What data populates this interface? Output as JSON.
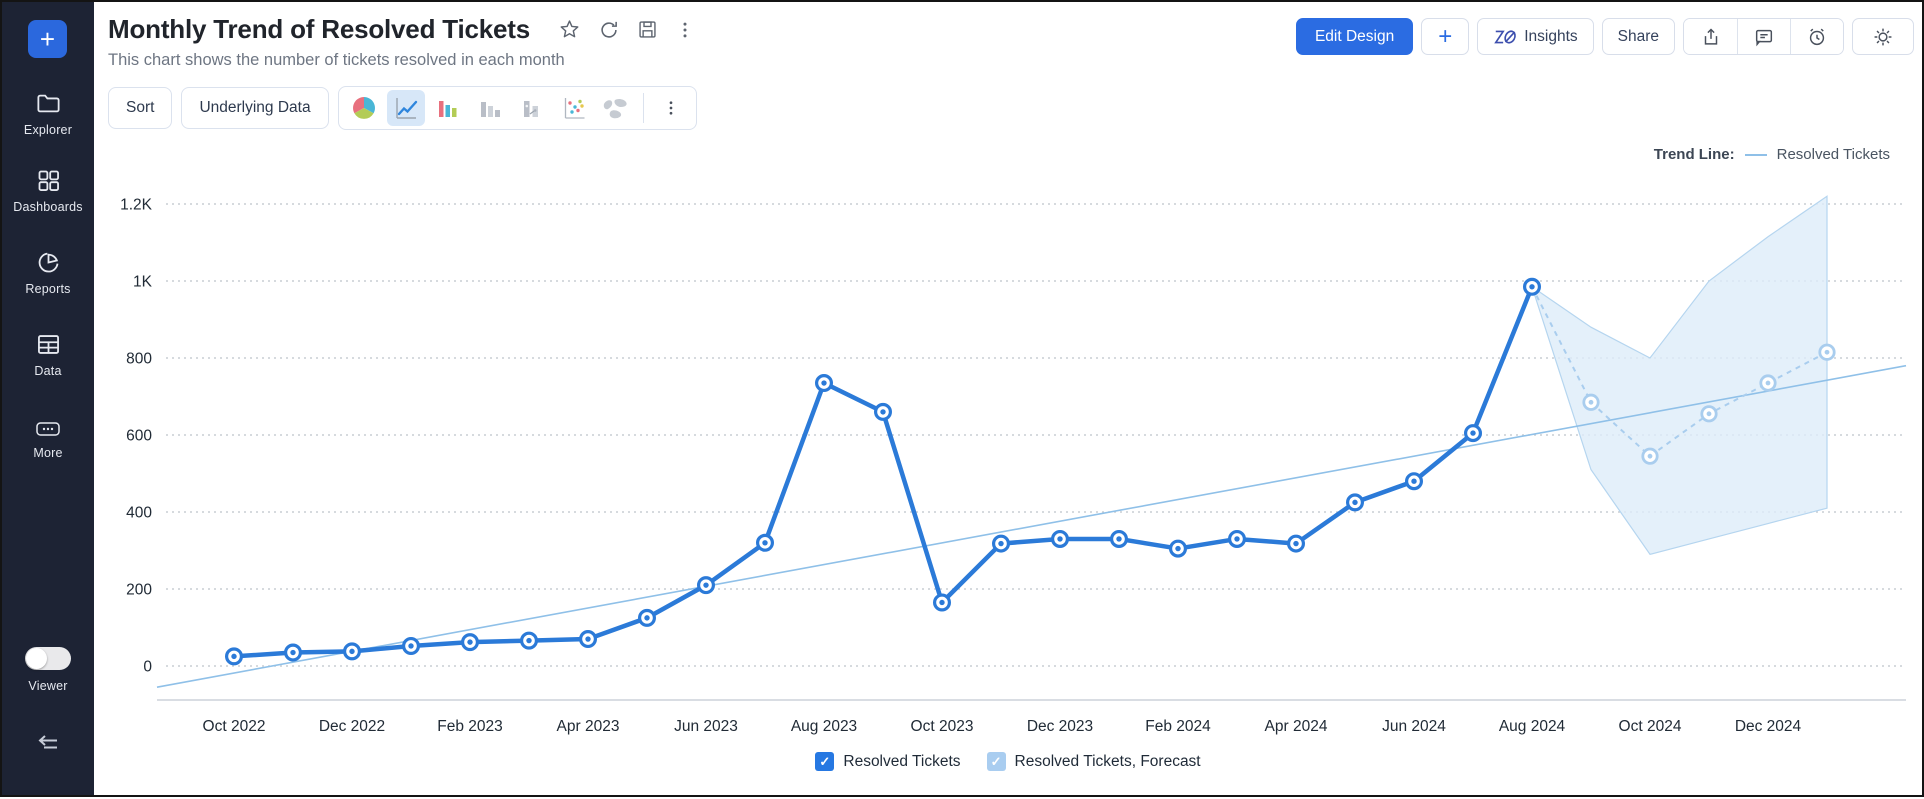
{
  "sidebar": {
    "plus_label": "+",
    "items": [
      {
        "label": "Explorer",
        "icon": "folder-icon"
      },
      {
        "label": "Dashboards",
        "icon": "grid-icon"
      },
      {
        "label": "Reports",
        "icon": "pie-icon"
      },
      {
        "label": "Data",
        "icon": "table-icon"
      },
      {
        "label": "More",
        "icon": "ellipsis-icon"
      }
    ],
    "viewer_label": "Viewer",
    "viewer_toggle_on": false
  },
  "header": {
    "title": "Monthly Trend of Resolved Tickets",
    "subtitle": "This chart shows the number of tickets resolved in each month",
    "title_icons": [
      "star-icon",
      "refresh-icon",
      "save-icon",
      "kebab-menu-icon"
    ],
    "actions": {
      "edit_design": "Edit Design",
      "add": "+",
      "insights": "Insights",
      "share": "Share",
      "icon_buttons": [
        "export-icon",
        "comment-icon",
        "alert-clock-icon",
        "gear-icon"
      ]
    }
  },
  "toolbar": {
    "sort": "Sort",
    "underlying_data": "Underlying Data",
    "chart_types": [
      "pie-chart-icon",
      "line-chart-icon",
      "column-chart-icon",
      "bar-chart-gray-icon",
      "stacked-bar-icon",
      "scatter-chart-icon",
      "map-chart-icon"
    ],
    "selected_chart_type": "line-chart-icon"
  },
  "trend_legend": {
    "label": "Trend Line:",
    "series": "Resolved Tickets"
  },
  "legend": [
    {
      "label": "Resolved Tickets",
      "checked": true,
      "color": "#2678e2"
    },
    {
      "label": "Resolved Tickets, Forecast",
      "checked": true,
      "color": "#a9cdf0"
    }
  ],
  "chart_data": {
    "type": "line",
    "title": "Monthly Trend of Resolved Tickets",
    "x": [
      "Oct 2022",
      "Nov 2022",
      "Dec 2022",
      "Jan 2023",
      "Feb 2023",
      "Mar 2023",
      "Apr 2023",
      "May 2023",
      "Jun 2023",
      "Jul 2023",
      "Aug 2023",
      "Sep 2023",
      "Oct 2023",
      "Nov 2023",
      "Dec 2023",
      "Jan 2024",
      "Feb 2024",
      "Mar 2024",
      "Apr 2024",
      "May 2024",
      "Jun 2024",
      "Jul 2024",
      "Aug 2024",
      "Sep 2024",
      "Oct 2024",
      "Nov 2024",
      "Dec 2024",
      "Jan 2025"
    ],
    "x_tick_step": 2,
    "x_tick_labels": [
      "Oct 2022",
      "Dec 2022",
      "Feb 2023",
      "Apr 2023",
      "Jun 2023",
      "Aug 2023",
      "Oct 2023",
      "Dec 2023",
      "Feb 2024",
      "Apr 2024",
      "Jun 2024",
      "Aug 2024",
      "Oct 2024",
      "Dec 2024"
    ],
    "series": [
      {
        "name": "Resolved Tickets",
        "start_index": 0,
        "values": [
          25,
          35,
          38,
          52,
          62,
          66,
          70,
          125,
          210,
          320,
          735,
          660,
          165,
          318,
          330,
          330,
          305,
          330,
          318,
          425,
          480,
          605,
          985
        ]
      },
      {
        "name": "Resolved Tickets, Forecast",
        "start_index": 22,
        "style": "dashed",
        "values": [
          985,
          685,
          545,
          655,
          735,
          815
        ]
      }
    ],
    "forecast_band": {
      "start_index": 22,
      "upper": [
        985,
        880,
        800,
        1000,
        1115,
        1220
      ],
      "lower": [
        985,
        510,
        290,
        330,
        370,
        410
      ]
    },
    "trend_line": {
      "name": "Resolved Tickets",
      "left_value": -55,
      "right_value": 780
    },
    "yticks": [
      0,
      200,
      400,
      600,
      800,
      1000,
      1200
    ],
    "ytick_labels": [
      "0",
      "200",
      "400",
      "600",
      "800",
      "1K",
      "1.2K"
    ],
    "ylim": [
      -90,
      1290
    ],
    "grid": "dashed-horizontal",
    "legend_position": "bottom-center",
    "colors": {
      "main_line": "#2b7ad8",
      "forecast_line": "#a9cdee",
      "band_fill": "#ddecf9",
      "band_stroke": "#b5d5ef",
      "trend_line": "#8fc0e8",
      "gridline": "#c9cdd3",
      "axis_line": "#d9dde3",
      "tick_text": "#212b36"
    }
  }
}
